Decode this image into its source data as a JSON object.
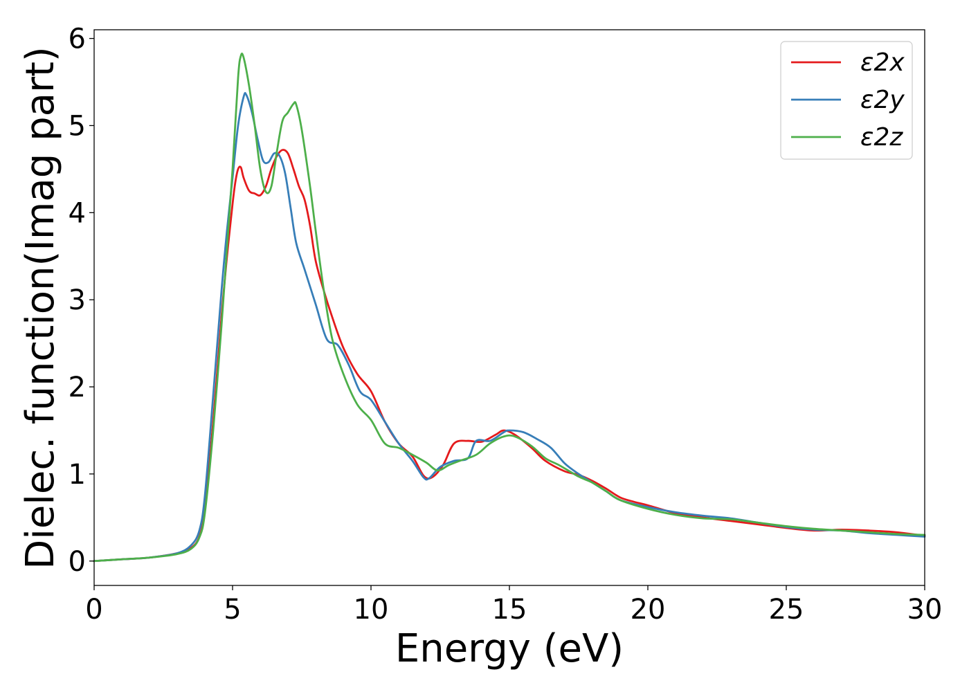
{
  "chart_data": {
    "type": "line",
    "title": "",
    "xlabel": "Energy (eV)",
    "ylabel": "Dielec. function(Imag part)",
    "xlim": [
      0,
      30
    ],
    "ylim": [
      -0.28,
      6.1
    ],
    "xticks": [
      0,
      5,
      10,
      15,
      20,
      25,
      30
    ],
    "yticks": [
      0,
      1,
      2,
      3,
      4,
      5,
      6
    ],
    "grid": false,
    "legend_position": "top-right",
    "series": [
      {
        "name": "ε2x",
        "color": "#e41a1c",
        "x": [
          0,
          1,
          2,
          3,
          3.5,
          3.8,
          4.0,
          4.3,
          4.6,
          4.8,
          5.0,
          5.1,
          5.2,
          5.3,
          5.4,
          5.6,
          5.8,
          6.0,
          6.2,
          6.4,
          6.6,
          6.8,
          7.0,
          7.2,
          7.4,
          7.6,
          7.8,
          8.0,
          8.3,
          8.6,
          9.0,
          9.5,
          10.0,
          10.5,
          11.0,
          11.5,
          11.9,
          12.2,
          12.6,
          13.0,
          13.5,
          14.0,
          14.5,
          14.8,
          15.2,
          15.8,
          16.3,
          17.0,
          17.5,
          18.0,
          18.5,
          19.0,
          19.5,
          20.0,
          21.0,
          22.0,
          23.0,
          24.0,
          25.0,
          26.0,
          27.0,
          28.0,
          29.0,
          30.0
        ],
        "values": [
          0.0,
          0.02,
          0.04,
          0.09,
          0.15,
          0.28,
          0.6,
          1.6,
          2.8,
          3.5,
          4.1,
          4.35,
          4.5,
          4.52,
          4.4,
          4.25,
          4.22,
          4.2,
          4.3,
          4.5,
          4.65,
          4.72,
          4.68,
          4.5,
          4.3,
          4.15,
          3.85,
          3.45,
          3.1,
          2.8,
          2.45,
          2.15,
          1.95,
          1.6,
          1.35,
          1.2,
          0.98,
          0.96,
          1.1,
          1.35,
          1.38,
          1.37,
          1.45,
          1.5,
          1.45,
          1.3,
          1.15,
          1.03,
          0.99,
          0.92,
          0.83,
          0.73,
          0.68,
          0.64,
          0.55,
          0.5,
          0.46,
          0.42,
          0.38,
          0.35,
          0.36,
          0.35,
          0.33,
          0.29
        ]
      },
      {
        "name": "ε2y",
        "color": "#377eb8",
        "x": [
          0,
          1,
          2,
          3,
          3.5,
          3.8,
          4.0,
          4.3,
          4.6,
          4.8,
          5.0,
          5.2,
          5.4,
          5.5,
          5.7,
          5.9,
          6.1,
          6.3,
          6.5,
          6.7,
          6.9,
          7.1,
          7.3,
          7.6,
          8.0,
          8.4,
          8.8,
          9.2,
          9.6,
          10.0,
          10.5,
          11.0,
          11.5,
          11.9,
          12.1,
          12.5,
          13.0,
          13.5,
          13.8,
          14.3,
          14.8,
          15.0,
          15.5,
          16.0,
          16.5,
          17.0,
          17.5,
          18.0,
          18.5,
          19.0,
          20.0,
          21.0,
          22.0,
          23.0,
          24.0,
          25.0,
          26.0,
          27.0,
          28.0,
          29.0,
          30.0
        ],
        "values": [
          0.0,
          0.02,
          0.04,
          0.09,
          0.18,
          0.35,
          0.75,
          1.9,
          3.1,
          3.8,
          4.4,
          5.0,
          5.33,
          5.35,
          5.15,
          4.85,
          4.6,
          4.58,
          4.68,
          4.65,
          4.45,
          4.05,
          3.65,
          3.35,
          2.95,
          2.55,
          2.48,
          2.25,
          1.95,
          1.85,
          1.6,
          1.35,
          1.15,
          0.96,
          0.95,
          1.08,
          1.15,
          1.18,
          1.38,
          1.38,
          1.48,
          1.5,
          1.48,
          1.4,
          1.3,
          1.12,
          1.0,
          0.9,
          0.8,
          0.7,
          0.62,
          0.56,
          0.52,
          0.49,
          0.44,
          0.39,
          0.36,
          0.35,
          0.32,
          0.3,
          0.28
        ]
      },
      {
        "name": "ε2z",
        "color": "#4daf4a",
        "x": [
          0,
          1,
          2,
          3,
          3.5,
          3.8,
          4.0,
          4.3,
          4.6,
          4.8,
          5.0,
          5.2,
          5.3,
          5.4,
          5.6,
          5.8,
          6.0,
          6.2,
          6.4,
          6.6,
          6.8,
          7.0,
          7.2,
          7.3,
          7.5,
          7.8,
          8.0,
          8.3,
          8.6,
          9.0,
          9.5,
          10.0,
          10.5,
          11.0,
          11.5,
          12.0,
          12.4,
          12.8,
          13.2,
          13.8,
          14.3,
          14.8,
          15.2,
          15.8,
          16.3,
          16.8,
          17.5,
          18.0,
          18.5,
          19.0,
          20.0,
          21.0,
          22.0,
          23.0,
          24.0,
          25.0,
          26.0,
          27.0,
          28.0,
          29.0,
          30.0
        ],
        "values": [
          0.0,
          0.02,
          0.04,
          0.08,
          0.14,
          0.27,
          0.55,
          1.5,
          2.7,
          3.6,
          4.5,
          5.55,
          5.8,
          5.78,
          5.45,
          5.0,
          4.5,
          4.24,
          4.3,
          4.7,
          5.05,
          5.15,
          5.25,
          5.24,
          4.95,
          4.3,
          3.8,
          3.1,
          2.55,
          2.15,
          1.8,
          1.62,
          1.35,
          1.3,
          1.22,
          1.13,
          1.04,
          1.1,
          1.15,
          1.22,
          1.35,
          1.43,
          1.43,
          1.32,
          1.18,
          1.1,
          0.97,
          0.9,
          0.8,
          0.7,
          0.6,
          0.53,
          0.49,
          0.48,
          0.44,
          0.4,
          0.37,
          0.35,
          0.33,
          0.31,
          0.3
        ]
      }
    ]
  }
}
